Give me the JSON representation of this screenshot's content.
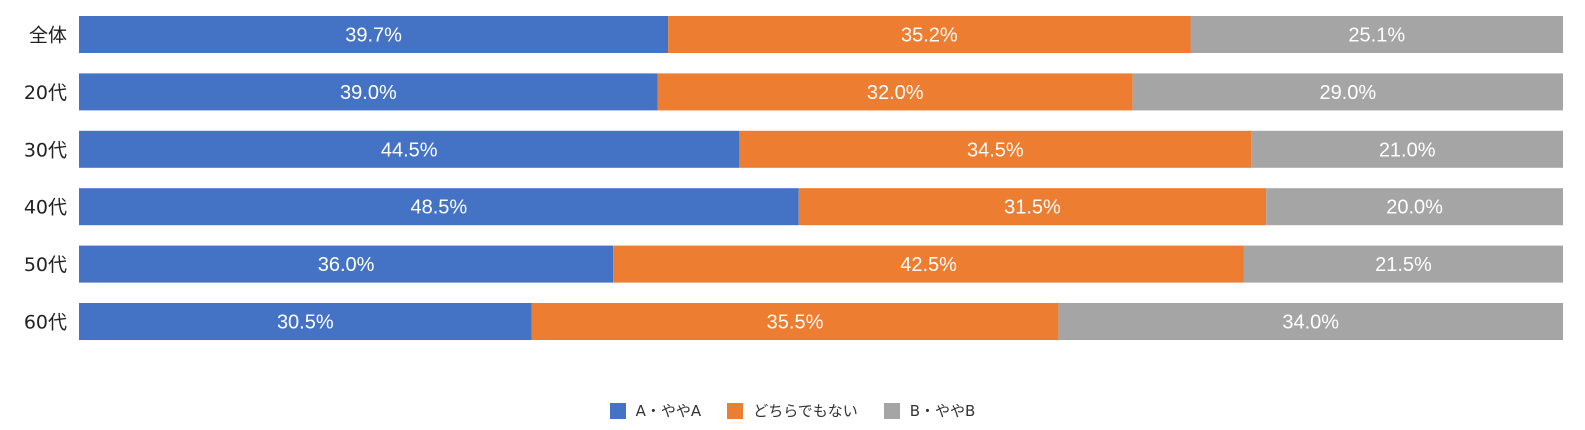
{
  "chart_data": {
    "type": "bar",
    "orientation": "horizontal",
    "stacked": "percent",
    "categories": [
      "全体",
      "20代",
      "30代",
      "40代",
      "50代",
      "60代"
    ],
    "series": [
      {
        "name": "A・ややA",
        "color": "#4472C4",
        "values": [
          39.7,
          39.0,
          44.5,
          48.5,
          36.0,
          30.5
        ]
      },
      {
        "name": "どちらでもない",
        "color": "#ED7D31",
        "values": [
          35.2,
          32.0,
          34.5,
          31.5,
          42.5,
          35.5
        ]
      },
      {
        "name": "B・ややB",
        "color": "#A5A5A5",
        "values": [
          25.1,
          29.0,
          21.0,
          20.0,
          21.5,
          34.0
        ]
      }
    ],
    "data_labels": [
      [
        "39.7%",
        "35.2%",
        "25.1%"
      ],
      [
        "39.0%",
        "32.0%",
        "29.0%"
      ],
      [
        "44.5%",
        "34.5%",
        "21.0%"
      ],
      [
        "48.5%",
        "31.5%",
        "20.0%"
      ],
      [
        "36.0%",
        "42.5%",
        "21.5%"
      ],
      [
        "30.5%",
        "35.5%",
        "34.0%"
      ]
    ],
    "xlim": [
      0,
      100
    ],
    "grid": false,
    "legend_position": "bottom"
  }
}
